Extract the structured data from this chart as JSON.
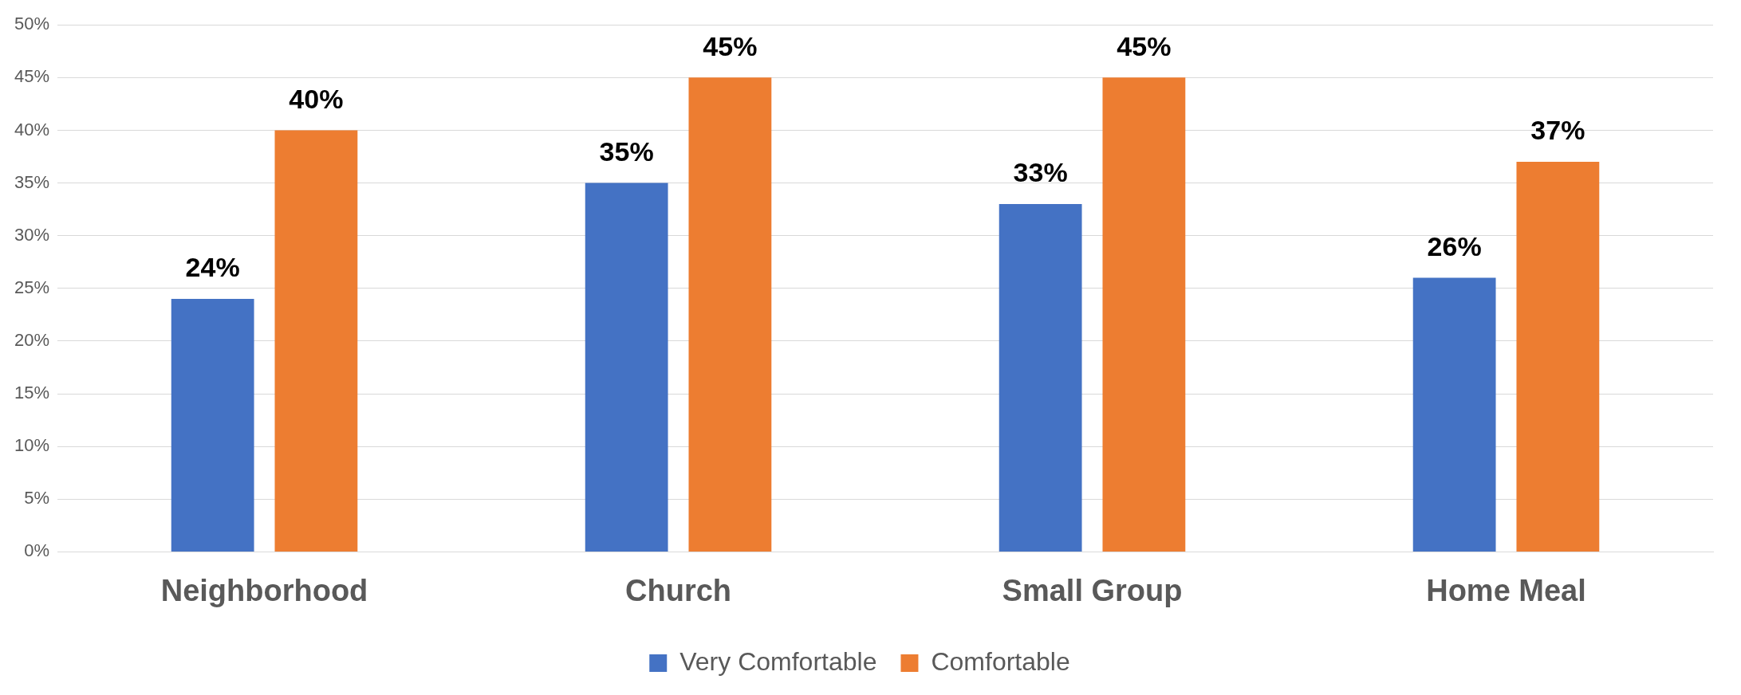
{
  "chart_data": {
    "type": "bar",
    "categories": [
      "Neighborhood",
      "Church",
      "Small Group",
      "Home Meal"
    ],
    "series": [
      {
        "name": "Very Comfortable",
        "color": "#4472c4",
        "values": [
          24,
          35,
          33,
          26
        ],
        "value_labels": [
          "24%",
          "35%",
          "33%",
          "26%"
        ]
      },
      {
        "name": "Comfortable",
        "color": "#ed7d31",
        "values": [
          40,
          45,
          45,
          37
        ],
        "value_labels": [
          "40%",
          "45%",
          "45%",
          "37%"
        ]
      }
    ],
    "ylim": [
      0,
      50
    ],
    "yticks": [
      {
        "value": 0,
        "label": "0%"
      },
      {
        "value": 5,
        "label": "5%"
      },
      {
        "value": 10,
        "label": "10%"
      },
      {
        "value": 15,
        "label": "15%"
      },
      {
        "value": 20,
        "label": "20%"
      },
      {
        "value": 25,
        "label": "25%"
      },
      {
        "value": 30,
        "label": "30%"
      },
      {
        "value": 35,
        "label": "35%"
      },
      {
        "value": 40,
        "label": "40%"
      },
      {
        "value": 45,
        "label": "45%"
      },
      {
        "value": 50,
        "label": "50%"
      }
    ],
    "grid": "y",
    "legend": "bottom"
  }
}
